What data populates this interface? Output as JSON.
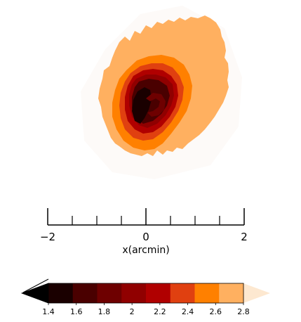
{
  "chart_data": {
    "type": "heatmap",
    "title": "",
    "xlabel": "x(arcmin)",
    "ylabel": "",
    "x_axis": {
      "range": [
        -2,
        2
      ],
      "tick_labels": [
        "−2",
        "0",
        "2"
      ],
      "major_ticks": [
        -2,
        0,
        2
      ],
      "minor_ticks": [
        -1.5,
        -1,
        -0.5,
        0.5,
        1,
        1.5
      ]
    },
    "colorbar": {
      "orientation": "horizontal",
      "position": "bottom",
      "extend": "both",
      "levels": [
        1.4,
        1.6,
        1.8,
        2.0,
        2.2,
        2.4,
        2.6,
        2.8
      ],
      "tick_labels": [
        "1.4",
        "1.6",
        "1.8",
        "2",
        "2.2",
        "2.4",
        "2.6",
        "2.8"
      ],
      "colors": [
        "#1a0000",
        "#4a0000",
        "#6e0000",
        "#900000",
        "#b00000",
        "#e04010",
        "#ff8000",
        "#ffb060"
      ],
      "under_color": "#000000",
      "over_color": "#fde8d0"
    },
    "contour_levels": [
      {
        "min": 1.4,
        "max": 1.6,
        "color": "#1a0000"
      },
      {
        "min": 1.6,
        "max": 1.8,
        "color": "#4a0000"
      },
      {
        "min": 1.8,
        "max": 2.0,
        "color": "#6e0000"
      },
      {
        "min": 2.0,
        "max": 2.2,
        "color": "#900000"
      },
      {
        "min": 2.2,
        "max": 2.4,
        "color": "#b00000"
      },
      {
        "min": 2.4,
        "max": 2.6,
        "color": "#e04010"
      },
      {
        "min": 2.6,
        "max": 2.8,
        "color": "#ff8000"
      },
      {
        "min": 2.8,
        "max": null,
        "color": "#ffb060"
      }
    ],
    "grid": false,
    "legend": "none"
  }
}
